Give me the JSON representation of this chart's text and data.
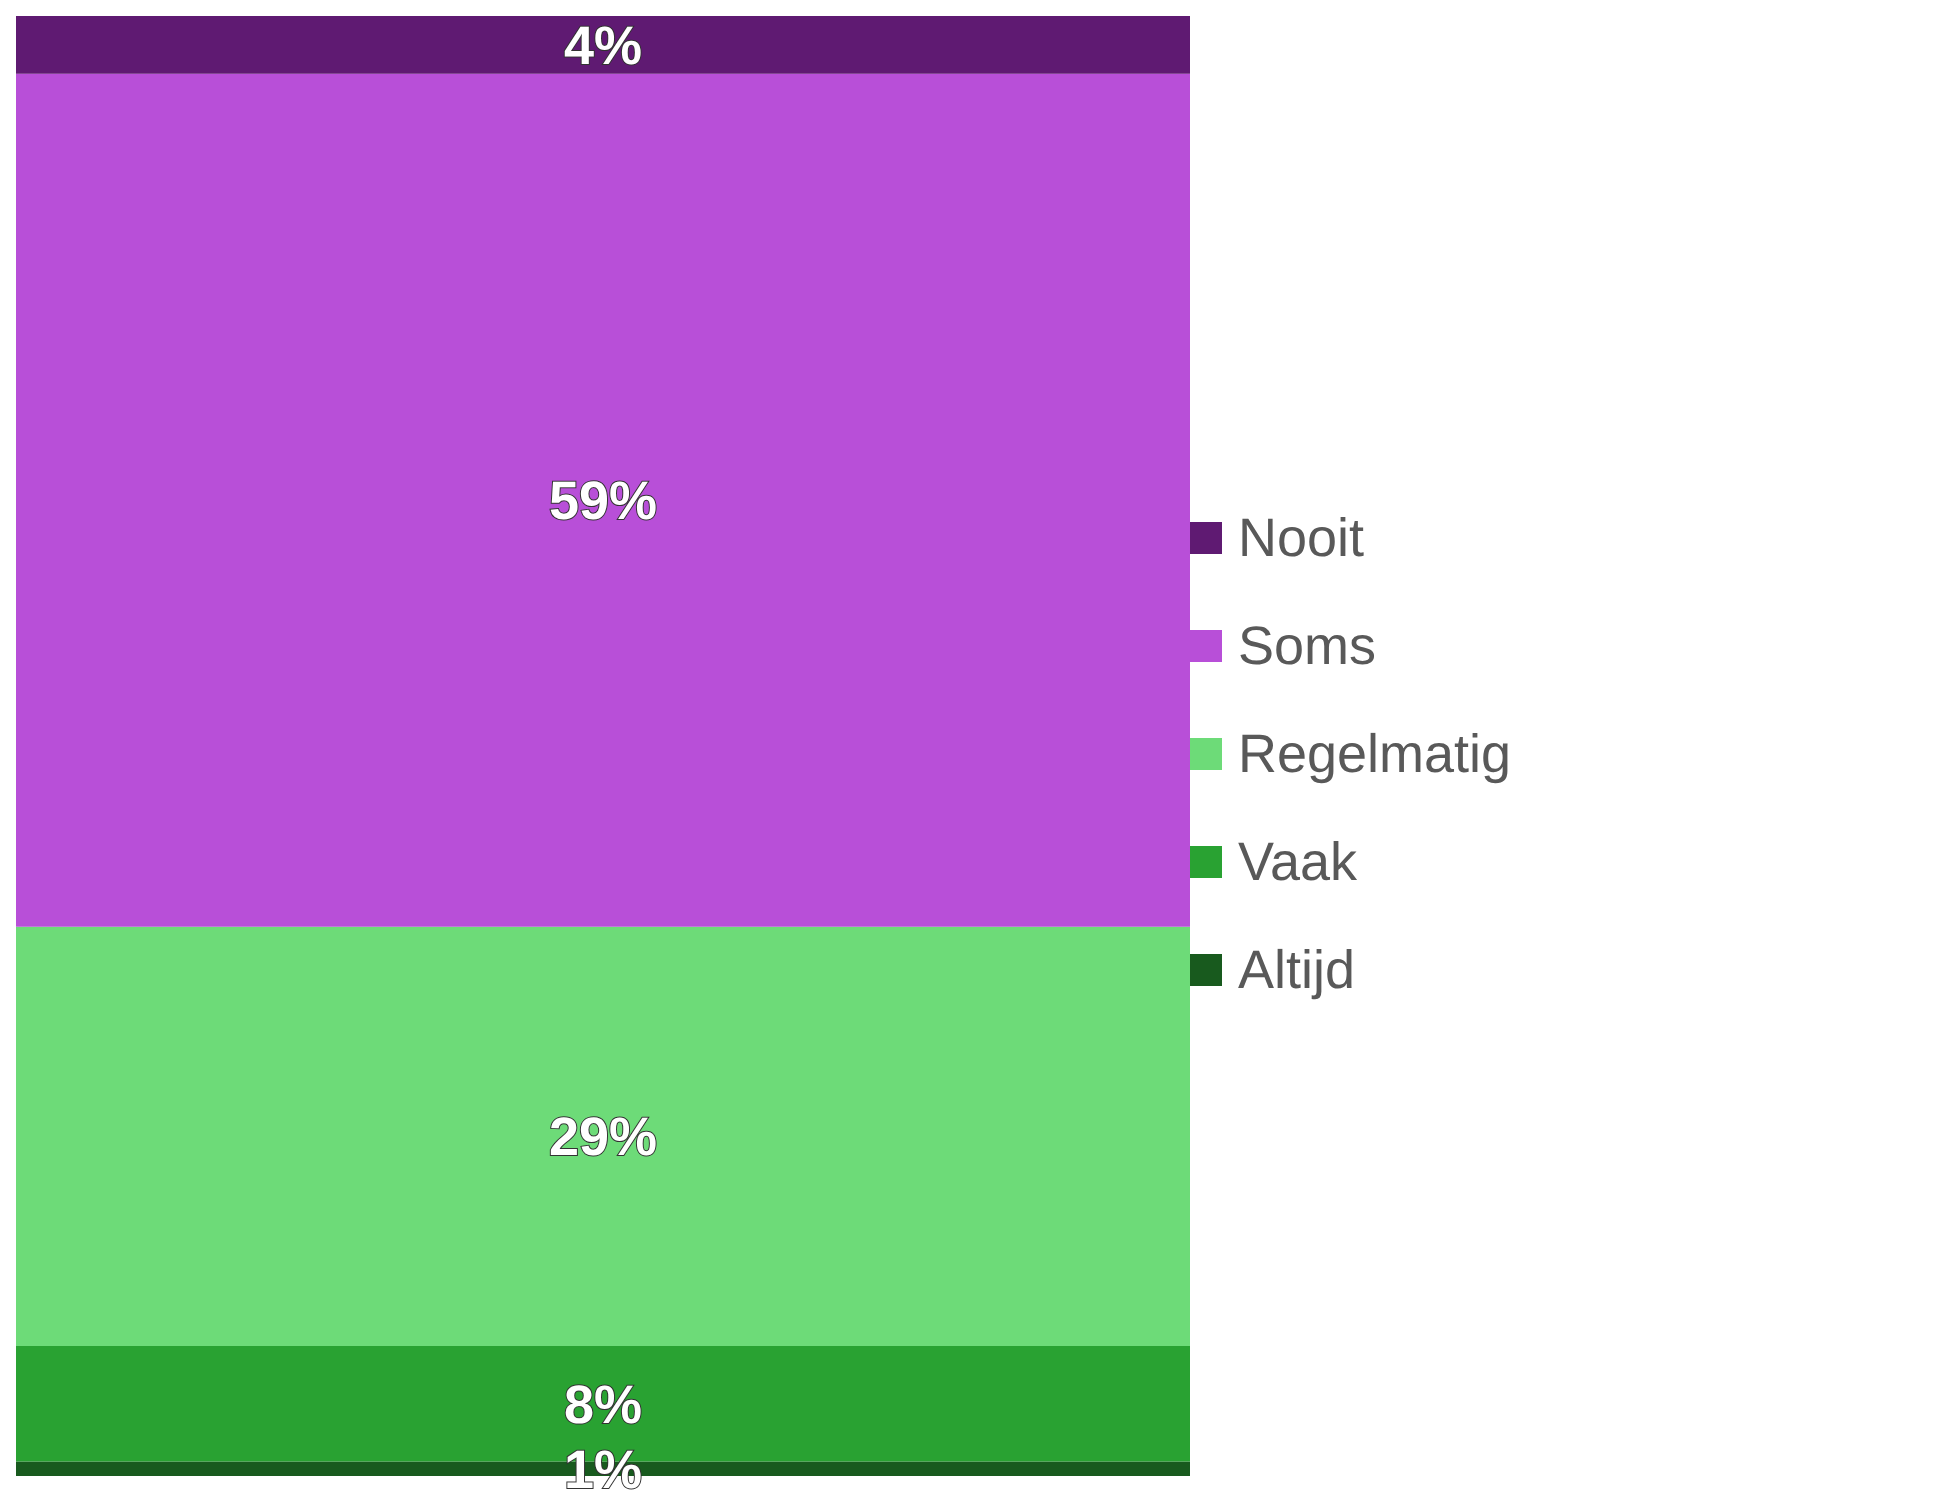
{
  "chart_data": {
    "type": "bar",
    "stacked": true,
    "categories": [
      null
    ],
    "series": [
      {
        "name": "Altijd",
        "color": "#185a1e",
        "values": [
          1
        ],
        "value_labels": [
          "1%"
        ]
      },
      {
        "name": "Vaak",
        "color": "#29a232",
        "values": [
          8
        ],
        "value_labels": [
          "8%"
        ]
      },
      {
        "name": "Regelmatig",
        "color": "#6ddb78",
        "values": [
          29
        ],
        "value_labels": [
          "29%"
        ]
      },
      {
        "name": "Soms",
        "color": "#b84fd8",
        "values": [
          59
        ],
        "value_labels": [
          "59%"
        ]
      },
      {
        "name": "Nooit",
        "color": "#5f1a72",
        "values": [
          4
        ],
        "value_labels": [
          "4%"
        ]
      }
    ],
    "legend": "right",
    "tick_labels": false,
    "grid": false
  }
}
